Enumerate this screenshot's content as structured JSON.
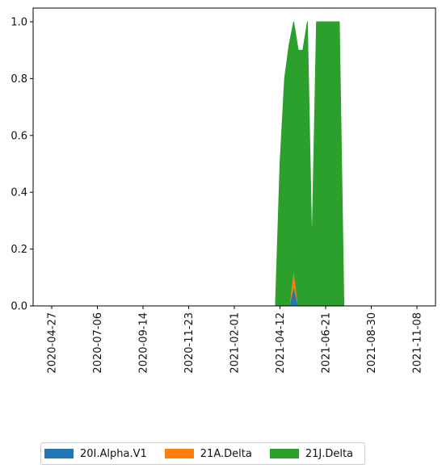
{
  "chart_data": {
    "type": "area",
    "stacked": true,
    "title": "",
    "xlabel": "",
    "ylabel": "",
    "xlim": [
      "2020-04-27",
      "2021-11-08"
    ],
    "ylim": [
      0,
      1.0
    ],
    "x_ticks": [
      "2020-04-27",
      "2020-07-06",
      "2020-09-14",
      "2020-11-23",
      "2021-02-01",
      "2021-04-12",
      "2021-06-21",
      "2021-08-30",
      "2021-11-08"
    ],
    "y_ticks": [
      "0.0",
      "0.2",
      "0.4",
      "0.6",
      "0.8",
      "1.0"
    ],
    "grid": false,
    "legend_position": "bottom",
    "x": [
      "2020-04-27",
      "2021-04-05",
      "2021-04-12",
      "2021-04-19",
      "2021-04-26",
      "2021-05-03",
      "2021-05-10",
      "2021-05-17",
      "2021-05-24",
      "2021-05-31",
      "2021-06-07",
      "2021-06-14",
      "2021-06-21",
      "2021-06-28",
      "2021-07-05",
      "2021-07-12",
      "2021-07-19",
      "2021-11-08"
    ],
    "series": [
      {
        "name": "20I.Alpha.V1",
        "color": "#1f77b4",
        "values": [
          0,
          0,
          0,
          0,
          0,
          0.07,
          0,
          0,
          0,
          0,
          0,
          0,
          0,
          0,
          0,
          0,
          0,
          0
        ]
      },
      {
        "name": "21A.Delta",
        "color": "#ff7f0e",
        "values": [
          0,
          0,
          0,
          0,
          0,
          0.06,
          0,
          0,
          0,
          0,
          0,
          0,
          0,
          0,
          0,
          0,
          0,
          0
        ]
      },
      {
        "name": "21J.Delta",
        "color": "#2ca02c",
        "values": [
          0,
          0,
          0.5,
          0.8,
          0.92,
          0.87,
          0.9,
          0.9,
          1.0,
          0.2,
          1.0,
          1.0,
          1.0,
          1.0,
          1.0,
          1.0,
          0,
          0
        ]
      }
    ]
  }
}
